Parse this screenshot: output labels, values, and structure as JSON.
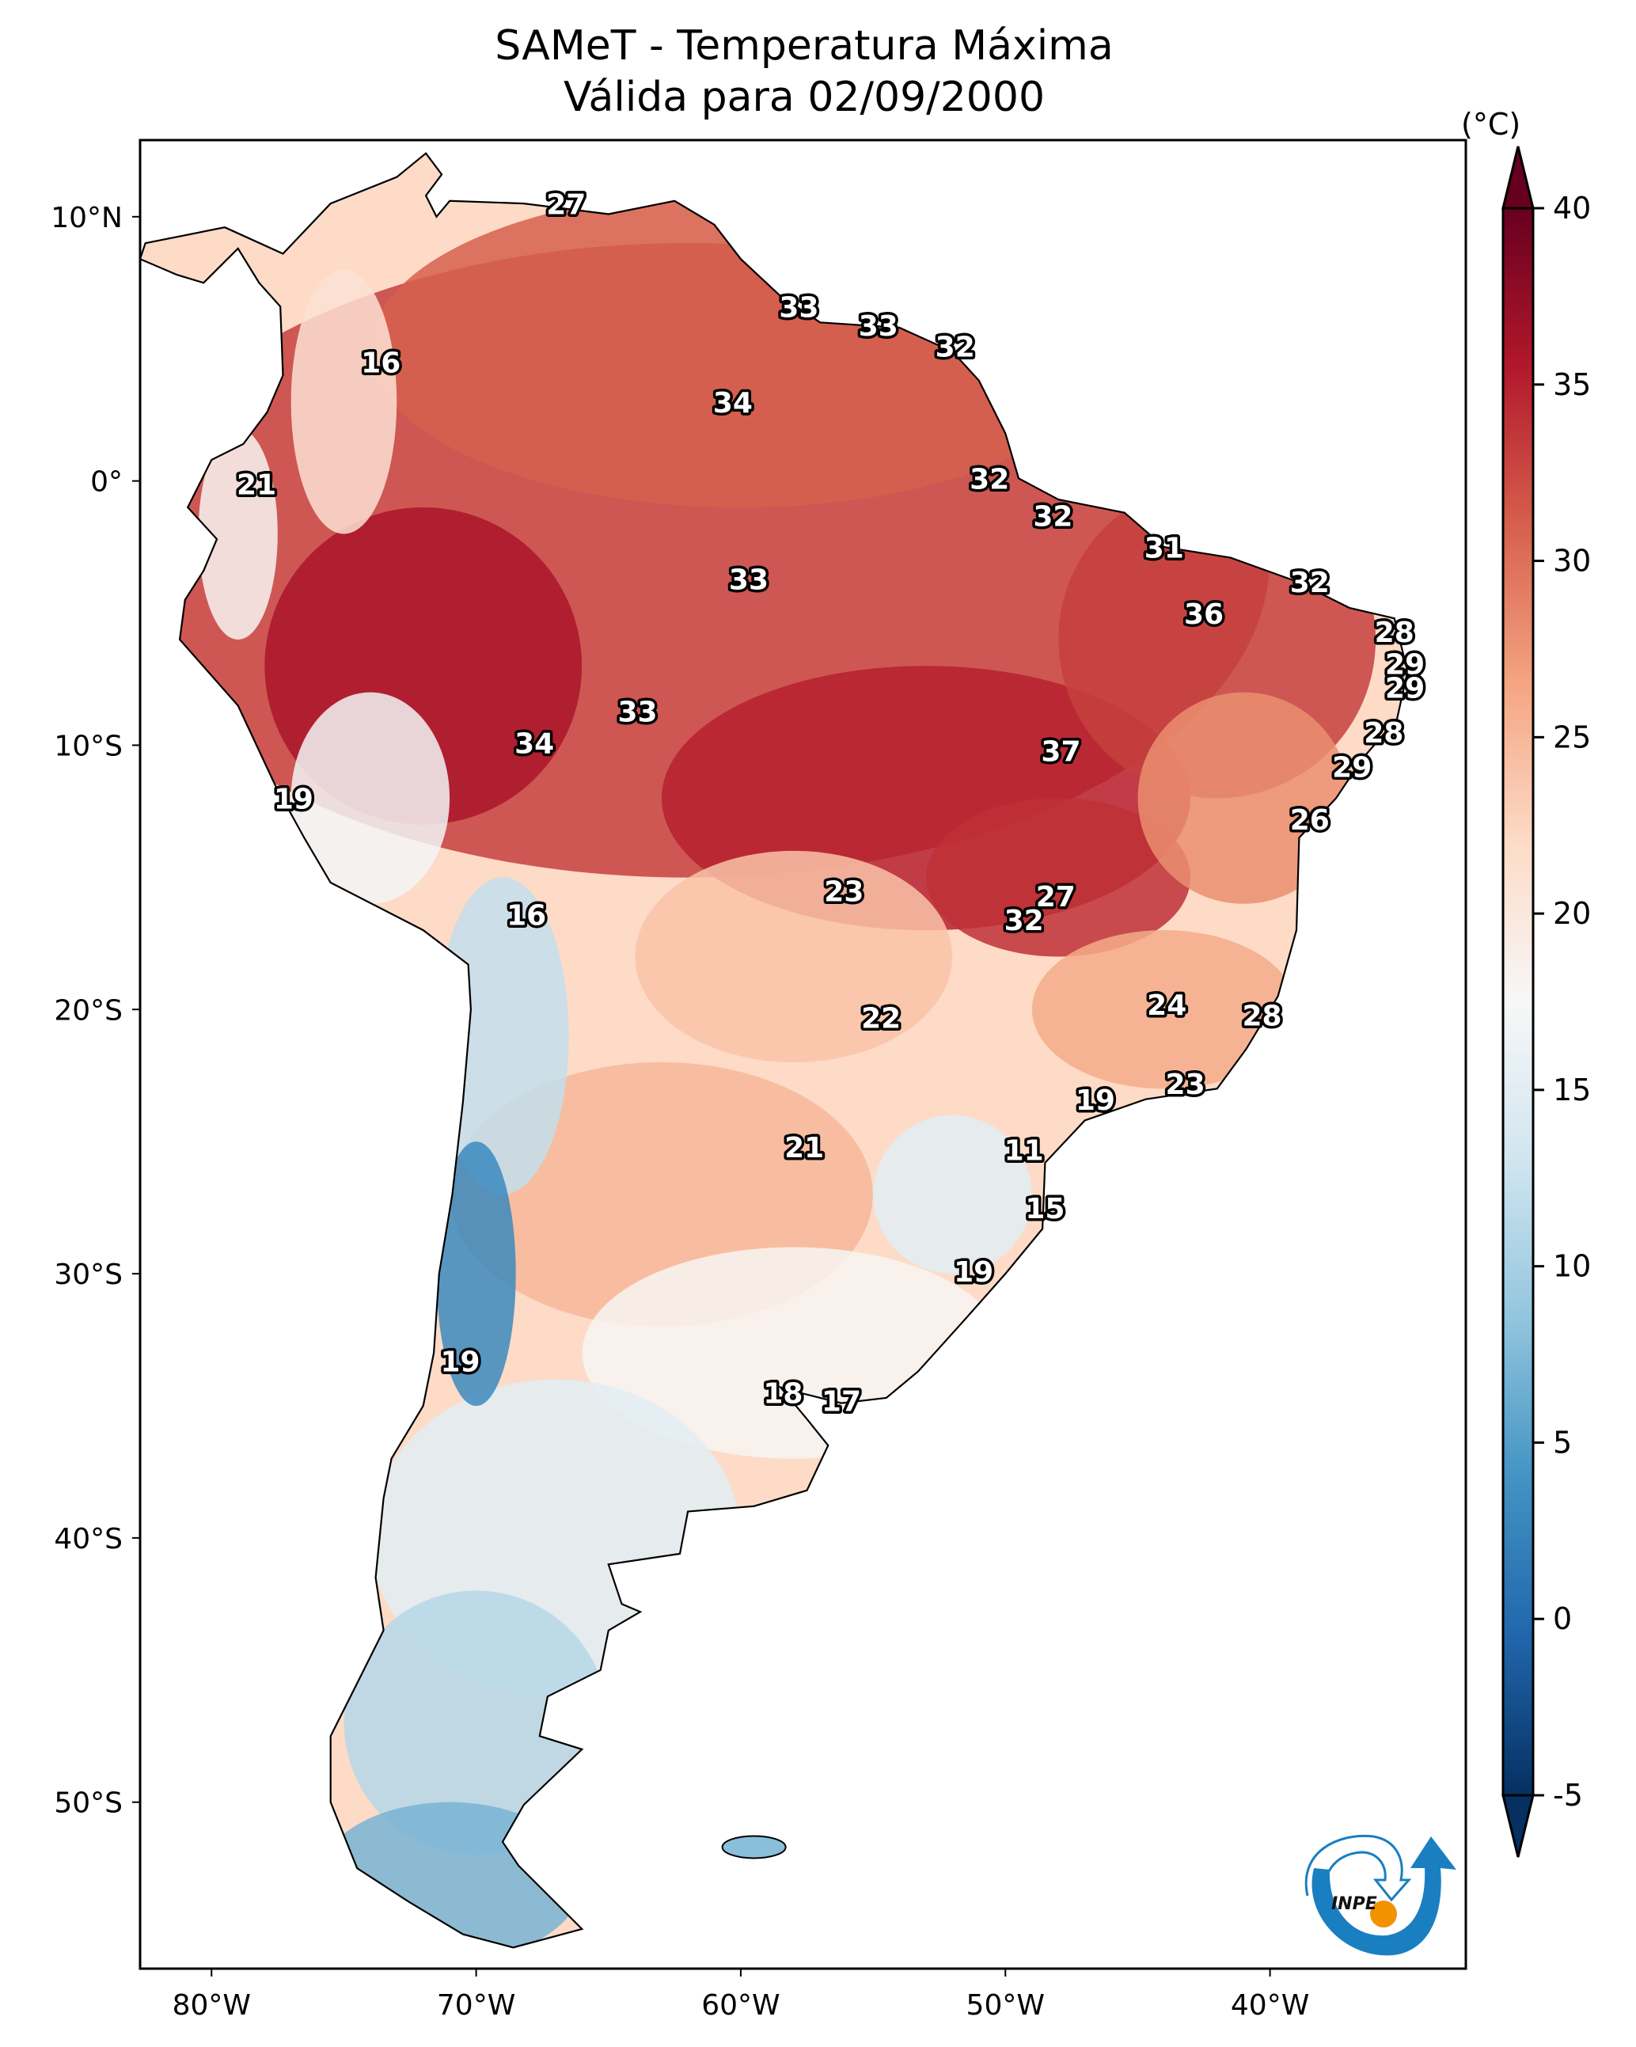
{
  "chart_data": {
    "type": "heatmap",
    "title": "SAMeT - Temperatura Máxima",
    "subtitle": "Válida para 02/09/2000",
    "variable": "Maximum temperature",
    "units_label": "(°C)",
    "colormap": "RdBu_r",
    "value_range": [
      -5,
      40
    ],
    "colorbar": {
      "ticks": [
        -5,
        0,
        5,
        10,
        15,
        20,
        25,
        30,
        35,
        40
      ],
      "extend": "both",
      "colors": [
        "#053061",
        "#2166ac",
        "#4393c3",
        "#92c5de",
        "#d1e5f0",
        "#f7f7f7",
        "#fddbc7",
        "#f4a582",
        "#d6604d",
        "#b2182b",
        "#67001f"
      ]
    },
    "x_axis": {
      "ticks": [
        -80,
        -70,
        -60,
        -50,
        -40
      ],
      "tick_labels": [
        "80°W",
        "70°W",
        "60°W",
        "50°W",
        "40°W"
      ],
      "range": [
        -82.7,
        -32.6
      ]
    },
    "y_axis": {
      "ticks": [
        10,
        0,
        -10,
        -20,
        -30,
        -40,
        -50
      ],
      "tick_labels": [
        "10°N",
        "0°",
        "10°S",
        "20°S",
        "30°S",
        "40°S",
        "50°S"
      ],
      "range": [
        -56.3,
        12.9
      ]
    },
    "grid": false,
    "legend": "colorbar-right",
    "station_values": [
      {
        "lon": -66.6,
        "lat": 10.4,
        "value": 27
      },
      {
        "lon": -57.8,
        "lat": 6.5,
        "value": 33
      },
      {
        "lon": -54.8,
        "lat": 5.8,
        "value": 33
      },
      {
        "lon": -51.9,
        "lat": 5.0,
        "value": 32
      },
      {
        "lon": -73.6,
        "lat": 4.4,
        "value": 16
      },
      {
        "lon": -60.3,
        "lat": 2.9,
        "value": 34
      },
      {
        "lon": -78.3,
        "lat": -0.2,
        "value": 21
      },
      {
        "lon": -50.6,
        "lat": 0.0,
        "value": 32
      },
      {
        "lon": -48.2,
        "lat": -1.4,
        "value": 32
      },
      {
        "lon": -44.0,
        "lat": -2.6,
        "value": 31
      },
      {
        "lon": -59.7,
        "lat": -3.8,
        "value": 33
      },
      {
        "lon": -38.5,
        "lat": -3.9,
        "value": 32
      },
      {
        "lon": -42.5,
        "lat": -5.1,
        "value": 36
      },
      {
        "lon": -35.3,
        "lat": -5.8,
        "value": 28
      },
      {
        "lon": -34.9,
        "lat": -7.0,
        "value": 29
      },
      {
        "lon": -34.9,
        "lat": -7.9,
        "value": 29
      },
      {
        "lon": -63.9,
        "lat": -8.8,
        "value": 33
      },
      {
        "lon": -67.8,
        "lat": -10.0,
        "value": 34
      },
      {
        "lon": -35.7,
        "lat": -9.6,
        "value": 28
      },
      {
        "lon": -47.9,
        "lat": -10.3,
        "value": 37
      },
      {
        "lon": -36.9,
        "lat": -10.9,
        "value": 29
      },
      {
        "lon": -76.9,
        "lat": -12.1,
        "value": 19
      },
      {
        "lon": -38.5,
        "lat": -12.9,
        "value": 26
      },
      {
        "lon": -56.1,
        "lat": -15.6,
        "value": 23
      },
      {
        "lon": -48.1,
        "lat": -15.8,
        "value": 27
      },
      {
        "lon": -49.3,
        "lat": -16.7,
        "value": 32
      },
      {
        "lon": -68.1,
        "lat": -16.5,
        "value": 16
      },
      {
        "lon": -54.7,
        "lat": -20.4,
        "value": 22
      },
      {
        "lon": -43.9,
        "lat": -19.9,
        "value": 24
      },
      {
        "lon": -40.3,
        "lat": -20.3,
        "value": 28
      },
      {
        "lon": -43.2,
        "lat": -22.9,
        "value": 23
      },
      {
        "lon": -46.6,
        "lat": -23.5,
        "value": 19
      },
      {
        "lon": -57.6,
        "lat": -25.3,
        "value": 21
      },
      {
        "lon": -49.3,
        "lat": -25.4,
        "value": 11
      },
      {
        "lon": -48.5,
        "lat": -27.6,
        "value": 15
      },
      {
        "lon": -51.2,
        "lat": -30.0,
        "value": 19
      },
      {
        "lon": -70.6,
        "lat": -33.4,
        "value": 19
      },
      {
        "lon": -58.4,
        "lat": -34.6,
        "value": 18
      },
      {
        "lon": -56.2,
        "lat": -34.9,
        "value": 17
      }
    ]
  },
  "logo": {
    "text": "INPE",
    "ring_color": "#1a7fc1",
    "dot_color": "#f39200"
  }
}
